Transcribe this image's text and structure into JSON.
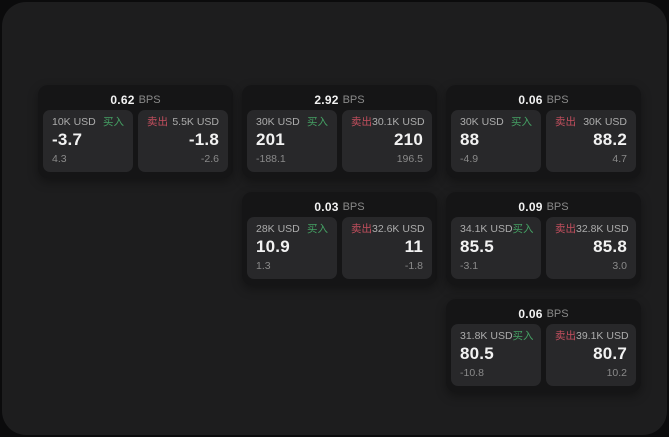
{
  "labels": {
    "bps_unit": "BPS",
    "buy": "买入",
    "sell": "卖出"
  },
  "colors": {
    "page_bg": "#0b0b0c",
    "panel_bg": "#1d1d1e",
    "card_bg": "#151516",
    "tile_bg": "#28282a",
    "buy_green": "#45a164",
    "sell_red": "#c44f5e",
    "value_white": "#f2f2f2",
    "muted_gray": "#8a8a8a"
  },
  "cards": [
    {
      "bps": "0.62",
      "buy": {
        "amount": "10K USD",
        "value": "-3.7",
        "delta": "4.3"
      },
      "sell": {
        "amount": "5.5K USD",
        "value": "-1.8",
        "delta": "-2.6"
      }
    },
    {
      "bps": "2.92",
      "buy": {
        "amount": "30K USD",
        "value": "201",
        "delta": "-188.1"
      },
      "sell": {
        "amount": "30.1K USD",
        "value": "210",
        "delta": "196.5"
      }
    },
    {
      "bps": "0.06",
      "buy": {
        "amount": "30K USD",
        "value": "88",
        "delta": "-4.9"
      },
      "sell": {
        "amount": "30K USD",
        "value": "88.2",
        "delta": "4.7"
      }
    },
    {
      "bps": "0.03",
      "buy": {
        "amount": "28K USD",
        "value": "10.9",
        "delta": "1.3"
      },
      "sell": {
        "amount": "32.6K USD",
        "value": "11",
        "delta": "-1.8"
      }
    },
    {
      "bps": "0.09",
      "buy": {
        "amount": "34.1K USD",
        "value": "85.5",
        "delta": "-3.1"
      },
      "sell": {
        "amount": "32.8K USD",
        "value": "85.8",
        "delta": "3.0"
      }
    },
    {
      "bps": "0.06",
      "buy": {
        "amount": "31.8K USD",
        "value": "80.5",
        "delta": "-10.8"
      },
      "sell": {
        "amount": "39.1K USD",
        "value": "80.7",
        "delta": "10.2"
      }
    }
  ]
}
